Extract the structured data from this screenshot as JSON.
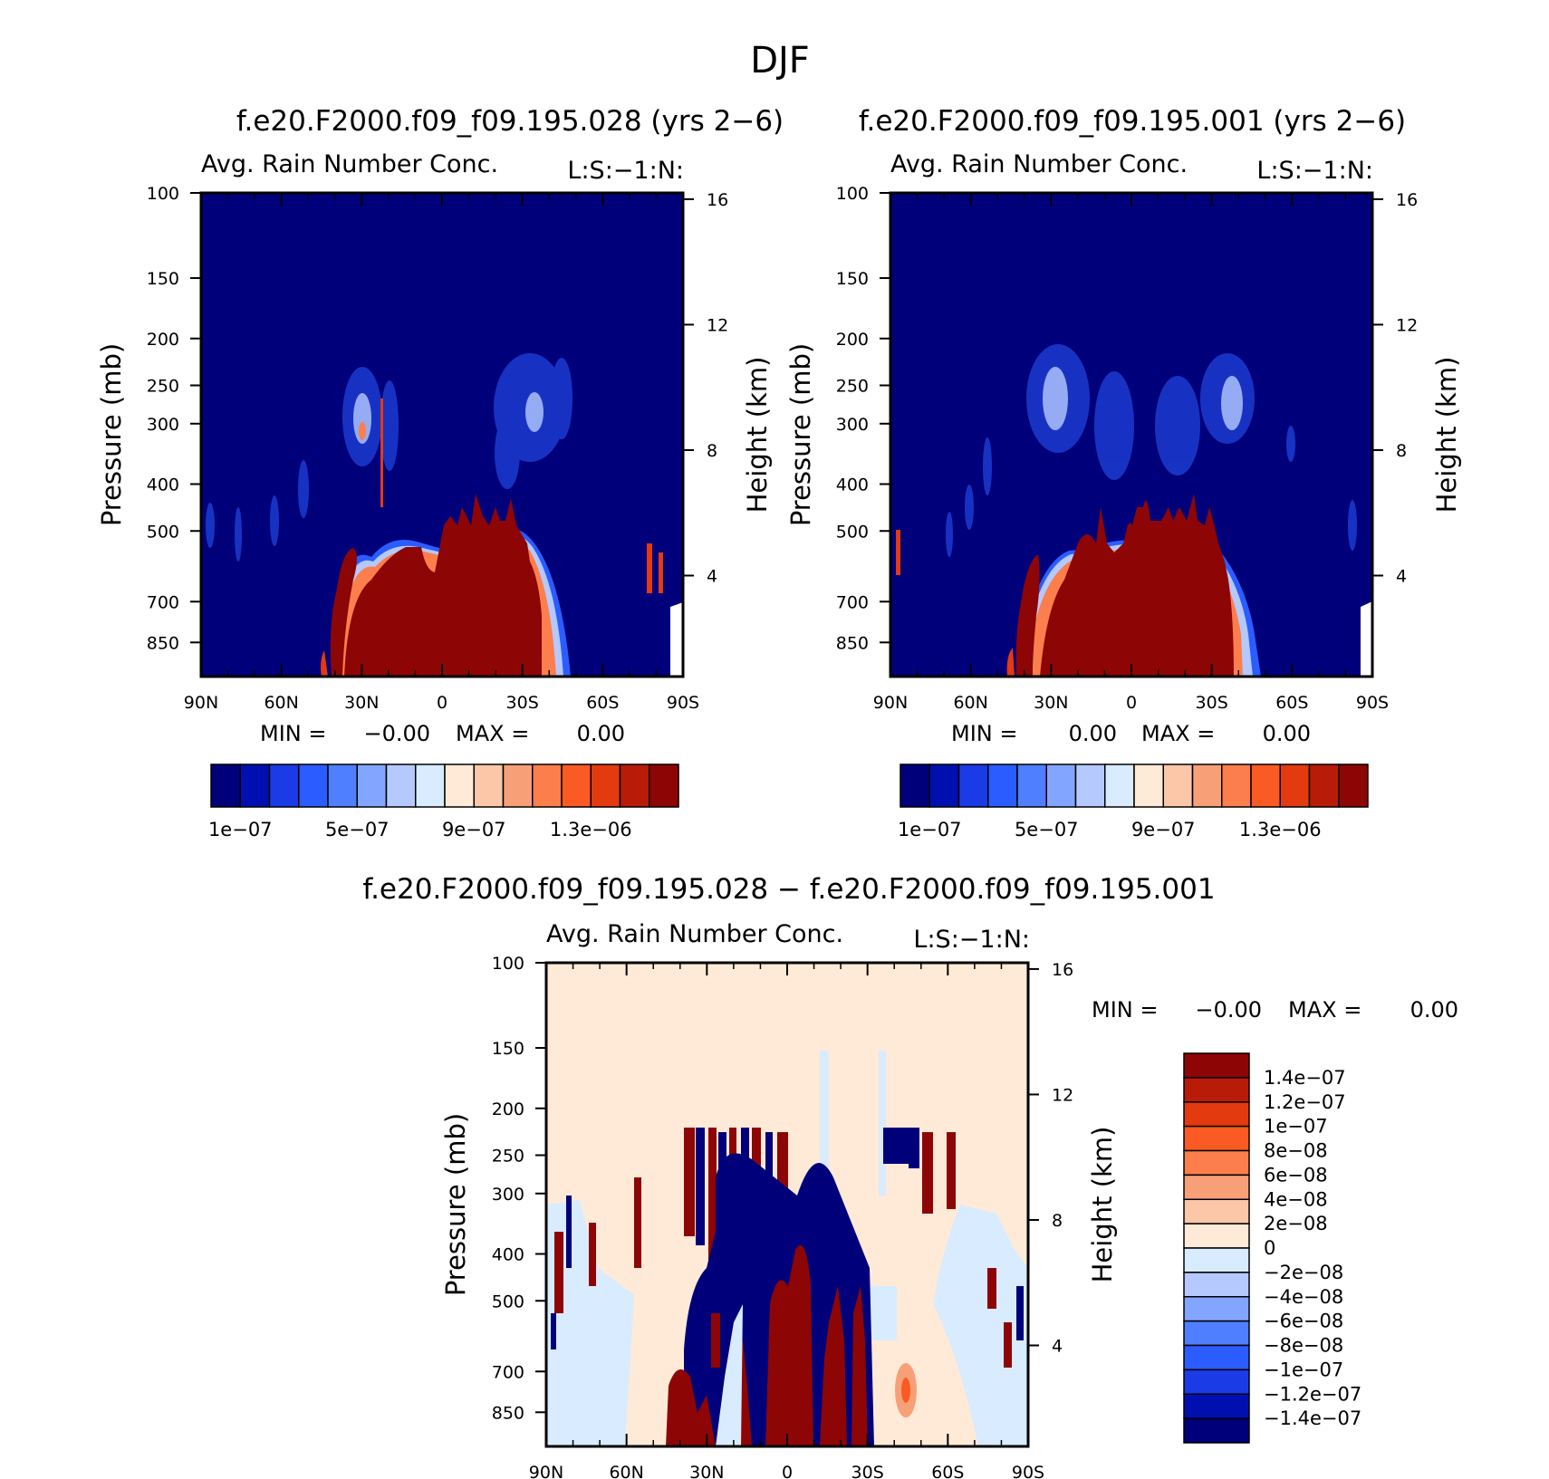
{
  "figure": {
    "main_title": "DJF"
  },
  "chart_data": [
    {
      "type": "heatmap",
      "title": "f.e20.F2000.f09_f09.195.028 (yrs 2−6)",
      "subtitle": "Avg. Rain Number Conc.",
      "corner_label": "L:S:−1:N:",
      "x_tick_labels": [
        "90N",
        "60N",
        "30N",
        "0",
        "30S",
        "60S",
        "90S"
      ],
      "x_ticks": [
        90,
        60,
        30,
        0,
        -30,
        -60,
        -90
      ],
      "ylabel": "Pressure (mb)",
      "y_ticks": [
        100,
        150,
        200,
        250,
        300,
        400,
        500,
        700,
        850
      ],
      "y_tick_labels": [
        "100",
        "150",
        "200",
        "250",
        "300",
        "400",
        "500",
        "700",
        "850"
      ],
      "ylabel_right": "Height (km)",
      "y_right_ticks": [
        16,
        12,
        8,
        4
      ],
      "y_right_tick_labels": [
        "16",
        "12",
        "8",
        "4"
      ],
      "min_text": "MIN =",
      "min_value": "−0.00",
      "max_text": "MAX =",
      "max_value": "0.00",
      "colorbar_labels": [
        "1e−07",
        "5e−07",
        "9e−07",
        "1.3e−06"
      ],
      "colorbar_colors": [
        "#00007a",
        "#0010b0",
        "#1b3be6",
        "#2a5cff",
        "#4f7fff",
        "#82a6ff",
        "#b5c9ff",
        "#d9ebff",
        "#ffead8",
        "#fcc6a8",
        "#f7a077",
        "#fb7e4c",
        "#fa5a23",
        "#e33a10",
        "#b81c08",
        "#8e0505"
      ]
    },
    {
      "type": "heatmap",
      "title": "f.e20.F2000.f09_f09.195.001 (yrs 2−6)",
      "subtitle": "Avg. Rain Number Conc.",
      "corner_label": "L:S:−1:N:",
      "x_tick_labels": [
        "90N",
        "60N",
        "30N",
        "0",
        "30S",
        "60S",
        "90S"
      ],
      "x_ticks": [
        90,
        60,
        30,
        0,
        -30,
        -60,
        -90
      ],
      "ylabel": "Pressure (mb)",
      "y_ticks": [
        100,
        150,
        200,
        250,
        300,
        400,
        500,
        700,
        850
      ],
      "y_tick_labels": [
        "100",
        "150",
        "200",
        "250",
        "300",
        "400",
        "500",
        "700",
        "850"
      ],
      "ylabel_right": "Height (km)",
      "y_right_ticks": [
        16,
        12,
        8,
        4
      ],
      "y_right_tick_labels": [
        "16",
        "12",
        "8",
        "4"
      ],
      "min_text": "MIN =",
      "min_value": "0.00",
      "max_text": "MAX =",
      "max_value": "0.00",
      "colorbar_labels": [
        "1e−07",
        "5e−07",
        "9e−07",
        "1.3e−06"
      ],
      "colorbar_colors": [
        "#00007a",
        "#0010b0",
        "#1b3be6",
        "#2a5cff",
        "#4f7fff",
        "#82a6ff",
        "#b5c9ff",
        "#d9ebff",
        "#ffead8",
        "#fcc6a8",
        "#f7a077",
        "#fb7e4c",
        "#fa5a23",
        "#e33a10",
        "#b81c08",
        "#8e0505"
      ]
    },
    {
      "type": "heatmap",
      "title": "f.e20.F2000.f09_f09.195.028 − f.e20.F2000.f09_f09.195.001",
      "subtitle": "Avg. Rain Number Conc.",
      "corner_label": "L:S:−1:N:",
      "x_tick_labels": [
        "90N",
        "60N",
        "30N",
        "0",
        "30S",
        "60S",
        "90S"
      ],
      "x_ticks": [
        90,
        60,
        30,
        0,
        -30,
        -60,
        -90
      ],
      "ylabel": "Pressure (mb)",
      "y_ticks": [
        100,
        150,
        200,
        250,
        300,
        400,
        500,
        700,
        850
      ],
      "y_tick_labels": [
        "100",
        "150",
        "200",
        "250",
        "300",
        "400",
        "500",
        "700",
        "850"
      ],
      "ylabel_right": "Height (km)",
      "y_right_ticks": [
        16,
        12,
        8,
        4
      ],
      "y_right_tick_labels": [
        "16",
        "12",
        "8",
        "4"
      ],
      "min_text": "MIN =",
      "min_value": "−0.00",
      "max_text": "MAX =",
      "max_value": "0.00",
      "colorbar_labels": [
        "1.4e−07",
        "1.2e−07",
        "1e−07",
        "8e−08",
        "6e−08",
        "4e−08",
        "2e−08",
        "0",
        "−2e−08",
        "−4e−08",
        "−6e−08",
        "−8e−08",
        "−1e−07",
        "−1.2e−07",
        "−1.4e−07"
      ],
      "colorbar_colors": [
        "#8e0505",
        "#b81c08",
        "#e33a10",
        "#fa5a23",
        "#fb7e4c",
        "#f7a077",
        "#fcc6a8",
        "#ffead8",
        "#d9ebff",
        "#b5c9ff",
        "#82a6ff",
        "#4f7fff",
        "#2a5cff",
        "#1b3be6",
        "#0010b0",
        "#00007a"
      ]
    }
  ]
}
